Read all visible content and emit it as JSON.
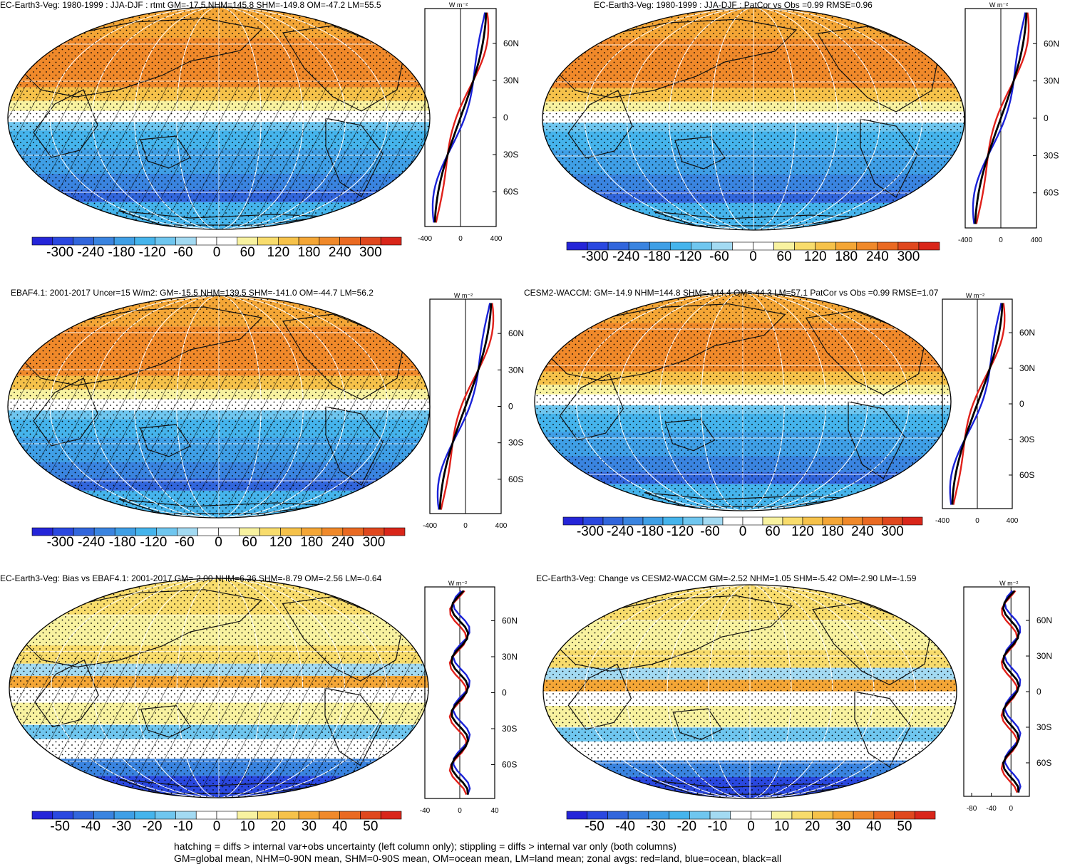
{
  "colors": {
    "scale": [
      "#2525d8",
      "#2a48e0",
      "#3266dc",
      "#3a84e0",
      "#3f9fe6",
      "#45b4ec",
      "#6fc6ef",
      "#a3daf2",
      "#ffffff",
      "#ffffff",
      "#f8f2a0",
      "#f8dc6c",
      "#f6c24a",
      "#f4a636",
      "#f0892a",
      "#ea6a22",
      "#e0481e",
      "#d9261a"
    ],
    "coast": "#111111",
    "grid": "#ffffff",
    "land_line": "#e0201a",
    "ocean_line": "#1a22d8",
    "all_line": "#000000"
  },
  "panels": [
    {
      "id": "p1",
      "title": "EC-Earth3-Veg: 1980-1999 : JJA-DJF : rtmt GM=-17.5 NHM=145.8 SHM=-149.8 OM=-47.2 LM=55.5",
      "field": "abs",
      "hatch": true,
      "stipple": true,
      "cbar_labels": [
        "-300",
        "-240",
        "-180",
        "-120",
        "-60",
        "0",
        "60",
        "120",
        "180",
        "240",
        "300"
      ],
      "zonal": {
        "unit": "W m⁻²",
        "xticks": [
          "-400",
          "0",
          "400"
        ],
        "yticks": [
          "60N",
          "30N",
          "0",
          "30S",
          "60S"
        ]
      }
    },
    {
      "id": "p2",
      "title": "EC-Earth3-Veg: 1980-1999 : JJA-DJF : PatCor vs Obs =0.99 RMSE=0.96",
      "field": "abs",
      "hatch": false,
      "stipple": true,
      "cbar_labels": [
        "-300",
        "-240",
        "-180",
        "-120",
        "-60",
        "0",
        "60",
        "120",
        "180",
        "240",
        "300"
      ],
      "zonal": {
        "unit": "W m⁻²",
        "xticks": [
          "-400",
          "0",
          "400"
        ],
        "yticks": [
          "60N",
          "30N",
          "0",
          "30S",
          "60S"
        ]
      }
    },
    {
      "id": "p3",
      "title": "EBAF4.1: 2001-2017 Uncer=15 W/m2: GM=-15.5 NHM=139.5 SHM=-141.0 OM=-44.7 LM=56.2",
      "field": "abs",
      "hatch": true,
      "stipple": true,
      "cbar_labels": [
        "-300",
        "-240",
        "-180",
        "-120",
        "-60",
        "0",
        "60",
        "120",
        "180",
        "240",
        "300"
      ],
      "zonal": {
        "unit": "W m⁻²",
        "xticks": [
          "-400",
          "0",
          "400"
        ],
        "yticks": [
          "60N",
          "30N",
          "0",
          "30S",
          "60S"
        ]
      }
    },
    {
      "id": "p4",
      "title": "CESM2-WACCM: GM=-14.9 NHM=144.8 SHM=-144.4 OM=-44.3 LM=57.1 PatCor vs Obs =0.99 RMSE=1.07",
      "field": "abs",
      "hatch": false,
      "stipple": true,
      "cbar_labels": [
        "-300",
        "-240",
        "-180",
        "-120",
        "-60",
        "0",
        "60",
        "120",
        "180",
        "240",
        "300"
      ],
      "zonal": {
        "unit": "W m⁻²",
        "xticks": [
          "-400",
          "0",
          "400"
        ],
        "yticks": [
          "60N",
          "30N",
          "0",
          "30S",
          "60S"
        ]
      }
    },
    {
      "id": "p5",
      "title": "EC-Earth3-Veg: Bias vs EBAF4.1: 2001-2017 GM=-2.00 NHM=6.36 SHM=-8.79 OM=-2.56 LM=-0.64",
      "field": "diff",
      "hatch": true,
      "stipple": true,
      "cbar_labels": [
        "-50",
        "-40",
        "-30",
        "-20",
        "-10",
        "0",
        "10",
        "20",
        "30",
        "40",
        "50"
      ],
      "zonal": {
        "unit": "W m⁻²",
        "xticks": [
          "-40",
          "0",
          "40"
        ],
        "yticks": [
          "60N",
          "30N",
          "0",
          "30S",
          "60S"
        ]
      }
    },
    {
      "id": "p6",
      "title": "EC-Earth3-Veg: Change vs CESM2-WACCM GM=-2.52 NHM=1.05 SHM=-5.42 OM=-2.90 LM=-1.59",
      "field": "diff",
      "hatch": false,
      "stipple": true,
      "cbar_labels": [
        "-50",
        "-40",
        "-30",
        "-20",
        "-10",
        "0",
        "10",
        "20",
        "30",
        "40",
        "50"
      ],
      "zonal": {
        "unit": "W m⁻²",
        "xticks": [
          "-80",
          "-40",
          "0"
        ],
        "yticks": [
          "60N",
          "30N",
          "0",
          "30S",
          "60S"
        ]
      }
    }
  ],
  "notes": {
    "line1": "hatching = diffs > internal var+obs uncertainty (left column only); stippling = diffs > internal var only (both columns)",
    "line2": "GM=global mean, NHM=0-90N mean, SHM=0-90S mean, OM=ocean mean, LM=land mean; zonal avgs: red=land, blue=ocean, black=all"
  }
}
